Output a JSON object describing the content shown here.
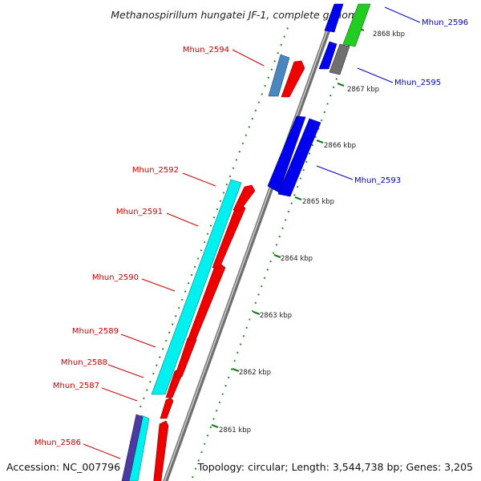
{
  "map": {
    "title": "Methanospirillum hungatei JF-1, complete genome",
    "footer": {
      "accession": "Accession: NC_007796",
      "topology": "Topology: circular; Length: 3,544,738 bp; Genes: 3,205"
    }
  },
  "ticks": [
    "2861 kbp",
    "2862 kbp",
    "2863 kbp",
    "2864 kbp",
    "2865 kbp",
    "2866 kbp",
    "2867 kbp",
    "2868 kbp"
  ],
  "genes": [
    {
      "id": "Mhun_2586",
      "strand": "reverse",
      "color": "#cc0000"
    },
    {
      "id": "Mhun_2587",
      "strand": "reverse",
      "color": "#cc0000"
    },
    {
      "id": "Mhun_2588",
      "strand": "reverse",
      "color": "#cc0000"
    },
    {
      "id": "Mhun_2589",
      "strand": "reverse",
      "color": "#cc0000"
    },
    {
      "id": "Mhun_2590",
      "strand": "reverse",
      "color": "#cc0000"
    },
    {
      "id": "Mhun_2591",
      "strand": "reverse",
      "color": "#cc0000"
    },
    {
      "id": "Mhun_2592",
      "strand": "reverse",
      "color": "#cc0000"
    },
    {
      "id": "Mhun_2593",
      "strand": "forward",
      "color": "#0000cc"
    },
    {
      "id": "Mhun_2594",
      "strand": "reverse",
      "color": "#cc0000"
    },
    {
      "id": "Mhun_2595",
      "strand": "forward",
      "color": "#0000cc"
    },
    {
      "id": "Mhun_2596",
      "strand": "forward",
      "color": "#0000cc"
    }
  ]
}
